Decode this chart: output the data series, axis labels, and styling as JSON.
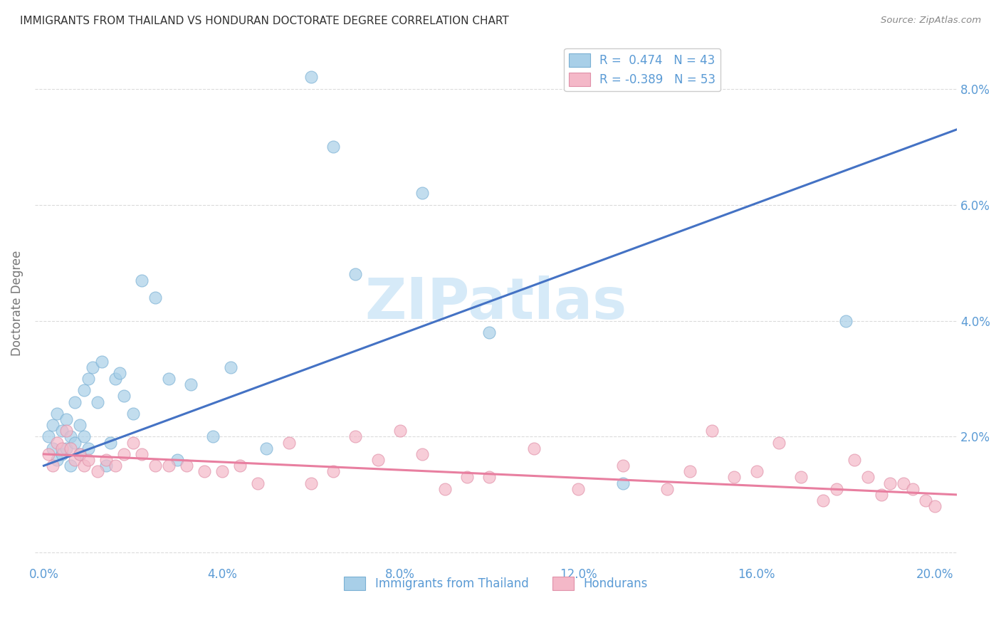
{
  "title": "IMMIGRANTS FROM THAILAND VS HONDURAN DOCTORATE DEGREE CORRELATION CHART",
  "source": "Source: ZipAtlas.com",
  "ylabel": "Doctorate Degree",
  "ytick_values": [
    0.0,
    0.02,
    0.04,
    0.06,
    0.08
  ],
  "xtick_values": [
    0.0,
    0.04,
    0.08,
    0.12,
    0.16,
    0.2
  ],
  "xlim": [
    -0.002,
    0.205
  ],
  "ylim": [
    -0.002,
    0.088
  ],
  "legend_entries": [
    {
      "label": "R =  0.474   N = 43",
      "color": "#a8cfe8"
    },
    {
      "label": "R = -0.389   N = 53",
      "color": "#f4b8c8"
    }
  ],
  "watermark": "ZIPatlas",
  "watermark_color": "#d6eaf8",
  "background_color": "#ffffff",
  "grid_color": "#cccccc",
  "title_color": "#333333",
  "axis_color": "#5b9bd5",
  "blue_scatter_color": "#a8cfe8",
  "pink_scatter_color": "#f4b8c8",
  "blue_line_color": "#4472c4",
  "pink_line_color": "#e87fa0",
  "blue_scatter_edge": "#7ab0d4",
  "pink_scatter_edge": "#e090a8",
  "thailand_x": [
    0.001,
    0.002,
    0.002,
    0.003,
    0.003,
    0.004,
    0.004,
    0.005,
    0.005,
    0.006,
    0.006,
    0.007,
    0.007,
    0.008,
    0.008,
    0.009,
    0.009,
    0.01,
    0.01,
    0.011,
    0.012,
    0.013,
    0.014,
    0.015,
    0.016,
    0.017,
    0.018,
    0.02,
    0.022,
    0.025,
    0.028,
    0.03,
    0.033,
    0.038,
    0.042,
    0.05,
    0.06,
    0.065,
    0.07,
    0.085,
    0.1,
    0.13,
    0.18
  ],
  "thailand_y": [
    0.02,
    0.018,
    0.022,
    0.016,
    0.024,
    0.017,
    0.021,
    0.018,
    0.023,
    0.015,
    0.02,
    0.019,
    0.026,
    0.017,
    0.022,
    0.02,
    0.028,
    0.018,
    0.03,
    0.032,
    0.026,
    0.033,
    0.015,
    0.019,
    0.03,
    0.031,
    0.027,
    0.024,
    0.047,
    0.044,
    0.03,
    0.016,
    0.029,
    0.02,
    0.032,
    0.018,
    0.082,
    0.07,
    0.048,
    0.062,
    0.038,
    0.012,
    0.04
  ],
  "honduras_x": [
    0.001,
    0.002,
    0.003,
    0.004,
    0.005,
    0.006,
    0.007,
    0.008,
    0.009,
    0.01,
    0.012,
    0.014,
    0.016,
    0.018,
    0.02,
    0.022,
    0.025,
    0.028,
    0.032,
    0.036,
    0.04,
    0.044,
    0.048,
    0.055,
    0.06,
    0.065,
    0.07,
    0.075,
    0.08,
    0.085,
    0.09,
    0.095,
    0.1,
    0.11,
    0.12,
    0.13,
    0.14,
    0.145,
    0.15,
    0.155,
    0.16,
    0.165,
    0.17,
    0.175,
    0.178,
    0.182,
    0.185,
    0.188,
    0.19,
    0.193,
    0.195,
    0.198,
    0.2
  ],
  "honduras_y": [
    0.017,
    0.015,
    0.019,
    0.018,
    0.021,
    0.018,
    0.016,
    0.017,
    0.015,
    0.016,
    0.014,
    0.016,
    0.015,
    0.017,
    0.019,
    0.017,
    0.015,
    0.015,
    0.015,
    0.014,
    0.014,
    0.015,
    0.012,
    0.019,
    0.012,
    0.014,
    0.02,
    0.016,
    0.021,
    0.017,
    0.011,
    0.013,
    0.013,
    0.018,
    0.011,
    0.015,
    0.011,
    0.014,
    0.021,
    0.013,
    0.014,
    0.019,
    0.013,
    0.009,
    0.011,
    0.016,
    0.013,
    0.01,
    0.012,
    0.012,
    0.011,
    0.009,
    0.008
  ],
  "blue_trend_x0": 0.0,
  "blue_trend_y0": 0.015,
  "blue_trend_x1": 0.205,
  "blue_trend_y1": 0.073,
  "pink_trend_x0": 0.0,
  "pink_trend_y0": 0.017,
  "pink_trend_x1": 0.205,
  "pink_trend_y1": 0.01
}
